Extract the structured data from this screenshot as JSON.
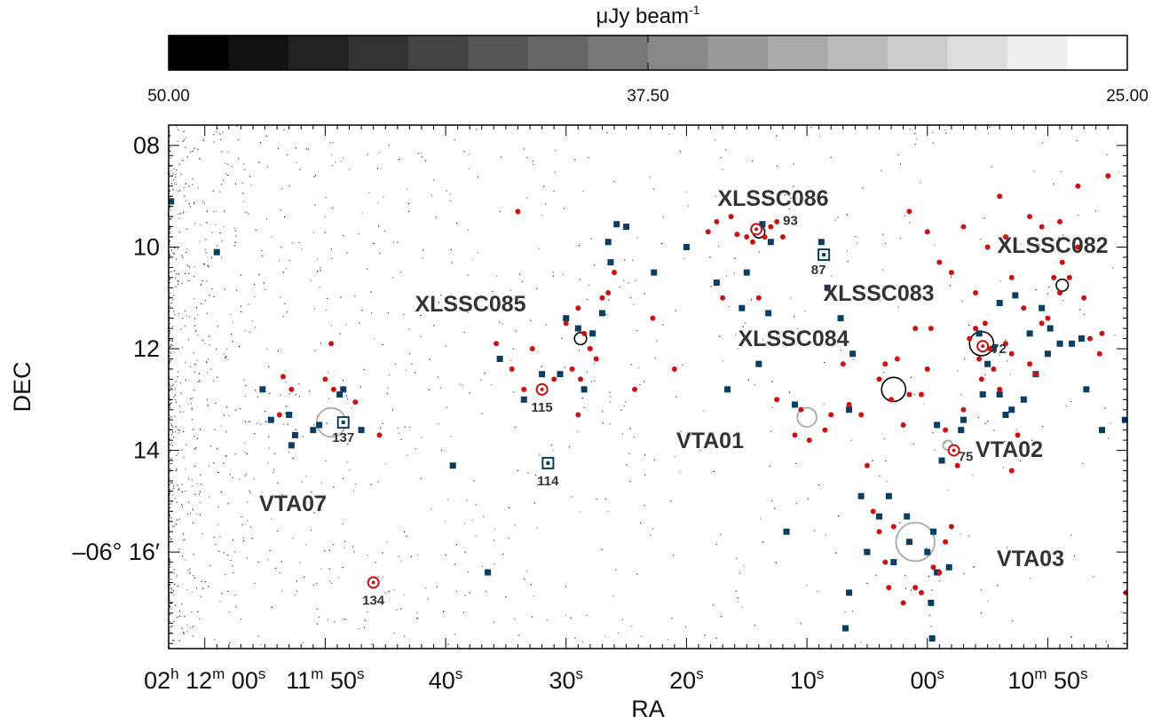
{
  "chart_data": {
    "type": "scatter",
    "colorbar": {
      "unit_label": "μJy beam",
      "unit_exponent": "-1",
      "range": [
        50.0,
        25.0
      ],
      "ticks": [
        "50.00",
        "37.50",
        "25.00"
      ],
      "n_steps": 16
    },
    "axes": {
      "xlabel": "RA",
      "ylabel": "DEC",
      "x_ticks": [
        {
          "sec": 60,
          "parts": [
            "02",
            "h",
            " 12",
            "m",
            " 00",
            "s"
          ]
        },
        {
          "sec": 50,
          "parts": [
            "11",
            "m",
            " 50",
            "s"
          ]
        },
        {
          "sec": 40,
          "parts": [
            "40",
            "s"
          ]
        },
        {
          "sec": 30,
          "parts": [
            "30",
            "s"
          ]
        },
        {
          "sec": 20,
          "parts": [
            "20",
            "s"
          ]
        },
        {
          "sec": 10,
          "parts": [
            "10",
            "s"
          ]
        },
        {
          "sec": 0,
          "parts": [
            "00",
            "s"
          ]
        },
        {
          "sec": -10,
          "parts": [
            "10",
            "m",
            " 50",
            "s"
          ]
        }
      ],
      "y_ticks": [
        {
          "arcmin": 8,
          "label": "08"
        },
        {
          "arcmin": 10,
          "label": "10"
        },
        {
          "arcmin": 12,
          "label": "12"
        },
        {
          "arcmin": 14,
          "label": "14"
        },
        {
          "arcmin": 16,
          "label": "–06° 16′"
        }
      ],
      "x_range_sec_offset_from_02h11m": [
        63.0,
        -16.6
      ],
      "y_range_arcmin_below_06deg": [
        7.6,
        17.9
      ]
    },
    "colors": {
      "red_sources": "#cc1111",
      "blue_sources": "#0a3d62",
      "cluster_circle": "#000000",
      "candidate_circle": "#aaaaaa"
    },
    "clusters": [
      {
        "name": "XLSSC086",
        "ra": 14.0,
        "dec": 9.7,
        "r": 0.5
      },
      {
        "name": "XLSSC085",
        "ra": 28.8,
        "dec": 11.8,
        "r": 0.5
      },
      {
        "name": "XLSSC083",
        "ra": 2.8,
        "dec": 12.8,
        "r": 1.0
      },
      {
        "name": "XLSSC084",
        "ra": -4.5,
        "dec": 11.9,
        "r": 1.0
      },
      {
        "name": "XLSSC082",
        "ra": -11.2,
        "dec": 10.75,
        "r": 0.5
      }
    ],
    "candidates": [
      {
        "name": "VTA07",
        "ra": 49.5,
        "dec": 13.45,
        "r": 1.2
      },
      {
        "name": "VTA01",
        "ra": 10.0,
        "dec": 13.35,
        "r": 0.8
      },
      {
        "name": "VTA02",
        "ra": -1.7,
        "dec": 13.9,
        "r": 0.4
      },
      {
        "name": "VTA03",
        "ra": 1.0,
        "dec": 15.8,
        "r": 1.6
      }
    ],
    "highlighted_sources": [
      {
        "id": "137",
        "type": "square",
        "ra": 48.5,
        "dec": 13.45
      },
      {
        "id": "134",
        "type": "circle",
        "ra": 46.0,
        "dec": 16.6
      },
      {
        "id": "115",
        "type": "circle",
        "ra": 32.0,
        "dec": 12.8
      },
      {
        "id": "114",
        "type": "square",
        "ra": 31.5,
        "dec": 14.25
      },
      {
        "id": "93",
        "type": "circle",
        "ra": 14.2,
        "dec": 9.65
      },
      {
        "id": "87",
        "type": "square",
        "ra": 8.6,
        "dec": 10.15
      },
      {
        "id": "72",
        "type": "circle",
        "ra": -4.6,
        "dec": 11.95
      },
      {
        "id": "75",
        "type": "circle",
        "ra": -2.2,
        "dec": 14.0
      }
    ],
    "red_sources": [
      [
        53.5,
        12.55
      ],
      [
        52.8,
        12.8
      ],
      [
        53.8,
        13.3
      ],
      [
        50.0,
        12.6
      ],
      [
        49.5,
        11.9
      ],
      [
        47.5,
        13.05
      ],
      [
        45.5,
        13.7
      ],
      [
        49.3,
        12.8
      ],
      [
        35.8,
        11.9
      ],
      [
        34.5,
        12.4
      ],
      [
        33.5,
        12.8
      ],
      [
        32.8,
        12.0
      ],
      [
        34.0,
        9.3
      ],
      [
        30.0,
        11.5
      ],
      [
        29.0,
        11.2
      ],
      [
        28.5,
        11.7
      ],
      [
        28.0,
        12.0
      ],
      [
        28.8,
        12.6
      ],
      [
        29.5,
        12.4
      ],
      [
        27.0,
        11.0
      ],
      [
        26.5,
        10.9
      ],
      [
        27.5,
        12.2
      ],
      [
        29.0,
        13.3
      ],
      [
        31.0,
        12.6
      ],
      [
        26.0,
        10.5
      ],
      [
        24.3,
        12.8
      ],
      [
        22.8,
        11.4
      ],
      [
        21.0,
        12.4
      ],
      [
        17.0,
        11.0
      ],
      [
        15.8,
        9.75
      ],
      [
        15.0,
        9.8
      ],
      [
        14.5,
        9.9
      ],
      [
        13.5,
        9.8
      ],
      [
        13.0,
        9.6
      ],
      [
        12.5,
        9.5
      ],
      [
        14.0,
        11.0
      ],
      [
        12.0,
        9.8
      ],
      [
        16.3,
        9.4
      ],
      [
        17.5,
        9.5
      ],
      [
        18.2,
        9.7
      ],
      [
        12.5,
        13.0
      ],
      [
        11.0,
        13.7
      ],
      [
        10.5,
        13.2
      ],
      [
        9.8,
        13.8
      ],
      [
        8.5,
        13.6
      ],
      [
        8.0,
        13.3
      ],
      [
        7.0,
        12.3
      ],
      [
        6.5,
        13.1
      ],
      [
        5.5,
        13.3
      ],
      [
        5.0,
        14.3
      ],
      [
        4.0,
        12.6
      ],
      [
        3.5,
        12.3
      ],
      [
        3.0,
        13.0
      ],
      [
        2.5,
        12.2
      ],
      [
        2.0,
        13.5
      ],
      [
        1.5,
        12.9
      ],
      [
        1.0,
        11.6
      ],
      [
        0.5,
        12.9
      ],
      [
        0.0,
        12.4
      ],
      [
        -0.3,
        11.6
      ],
      [
        4.5,
        15.2
      ],
      [
        4.0,
        15.6
      ],
      [
        3.5,
        16.2
      ],
      [
        3.2,
        16.7
      ],
      [
        2.8,
        15.5
      ],
      [
        2.0,
        17.0
      ],
      [
        1.0,
        16.7
      ],
      [
        0.5,
        16.8
      ],
      [
        -0.5,
        16.3
      ],
      [
        -1.0,
        16.4
      ],
      [
        -1.5,
        15.8
      ],
      [
        -2.0,
        15.5
      ],
      [
        -3.5,
        11.8
      ],
      [
        -4.0,
        11.6
      ],
      [
        -4.3,
        12.2
      ],
      [
        -4.8,
        11.5
      ],
      [
        -5.2,
        12.0
      ],
      [
        -5.5,
        12.4
      ],
      [
        -6.0,
        12.8
      ],
      [
        -6.5,
        11.9
      ],
      [
        -7.0,
        12.1
      ],
      [
        -8.0,
        11.2
      ],
      [
        -8.5,
        12.3
      ],
      [
        -9.0,
        12.5
      ],
      [
        -9.5,
        11.5
      ],
      [
        -10.0,
        11.4
      ],
      [
        -10.5,
        10.6
      ],
      [
        -11.0,
        10.9
      ],
      [
        -11.2,
        10.3
      ],
      [
        -11.8,
        10.6
      ],
      [
        -12.5,
        10.0
      ],
      [
        -13.0,
        11.0
      ],
      [
        -13.5,
        11.8
      ],
      [
        -14.3,
        12.1
      ],
      [
        -14.5,
        11.7
      ],
      [
        -15.0,
        8.6
      ],
      [
        1.5,
        9.3
      ],
      [
        0.0,
        9.7
      ],
      [
        -1.0,
        10.3
      ],
      [
        -2.0,
        10.5
      ],
      [
        -3.0,
        9.6
      ],
      [
        -4.0,
        10.9
      ],
      [
        -5.0,
        10.0
      ],
      [
        -6.0,
        9.0
      ],
      [
        -6.5,
        9.8
      ],
      [
        -7.0,
        10.6
      ],
      [
        -8.5,
        9.4
      ],
      [
        -9.5,
        9.6
      ],
      [
        -11.0,
        9.5
      ],
      [
        -12.5,
        8.8
      ],
      [
        -16.5,
        16.8
      ],
      [
        -2.5,
        14.3
      ],
      [
        -1.5,
        13.6
      ],
      [
        -3.0,
        13.2
      ],
      [
        -4.5,
        12.6
      ],
      [
        -7.0,
        14.4
      ],
      [
        -7.5,
        13.7
      ]
    ],
    "blue_sources": [
      [
        62.8,
        9.1
      ],
      [
        59.0,
        10.1
      ],
      [
        53.0,
        13.3
      ],
      [
        52.5,
        13.7
      ],
      [
        51.0,
        13.6
      ],
      [
        50.5,
        13.5
      ],
      [
        48.8,
        12.9
      ],
      [
        48.5,
        12.8
      ],
      [
        52.8,
        13.9
      ],
      [
        54.5,
        13.4
      ],
      [
        47.0,
        13.6
      ],
      [
        55.2,
        12.8
      ],
      [
        39.4,
        14.3
      ],
      [
        36.5,
        16.4
      ],
      [
        35.5,
        12.2
      ],
      [
        33.5,
        13.0
      ],
      [
        32.0,
        12.5
      ],
      [
        30.0,
        11.4
      ],
      [
        30.5,
        12.5
      ],
      [
        29.0,
        11.6
      ],
      [
        28.5,
        12.8
      ],
      [
        27.8,
        11.7
      ],
      [
        27.0,
        11.3
      ],
      [
        26.3,
        10.3
      ],
      [
        26.5,
        9.9
      ],
      [
        25.8,
        9.55
      ],
      [
        25.0,
        9.6
      ],
      [
        22.7,
        10.5
      ],
      [
        20.0,
        10.0
      ],
      [
        17.5,
        10.7
      ],
      [
        16.6,
        12.8
      ],
      [
        15.4,
        11.2
      ],
      [
        15.0,
        10.5
      ],
      [
        13.7,
        9.55
      ],
      [
        13.0,
        9.9
      ],
      [
        13.2,
        11.3
      ],
      [
        14.0,
        12.3
      ],
      [
        11.7,
        15.6
      ],
      [
        11.0,
        13.1
      ],
      [
        8.8,
        9.9
      ],
      [
        8.3,
        10.8
      ],
      [
        7.2,
        11.4
      ],
      [
        6.2,
        12.1
      ],
      [
        6.5,
        13.2
      ],
      [
        5.5,
        14.9
      ],
      [
        5.0,
        16.0
      ],
      [
        4.0,
        15.3
      ],
      [
        3.2,
        14.9
      ],
      [
        2.8,
        16.2
      ],
      [
        1.7,
        15.3
      ],
      [
        1.5,
        15.8
      ],
      [
        0.0,
        16.0
      ],
      [
        -0.5,
        15.6
      ],
      [
        -0.8,
        16.4
      ],
      [
        -1.8,
        16.3
      ],
      [
        -0.3,
        17.0
      ],
      [
        -0.4,
        17.7
      ],
      [
        -0.8,
        13.5
      ],
      [
        -1.2,
        14.2
      ],
      [
        6.5,
        16.8
      ],
      [
        6.8,
        17.5
      ],
      [
        -2.8,
        13.6
      ],
      [
        -4.3,
        11.7
      ],
      [
        -5.0,
        12.3
      ],
      [
        -5.5,
        12.0
      ],
      [
        -6.0,
        12.9
      ],
      [
        -6.5,
        13.3
      ],
      [
        -7.0,
        13.2
      ],
      [
        -8.0,
        13.0
      ],
      [
        -8.5,
        11.7
      ],
      [
        -9.0,
        12.5
      ],
      [
        -10.0,
        12.1
      ],
      [
        -11.0,
        11.9
      ],
      [
        -12.0,
        11.9
      ],
      [
        -12.8,
        11.8
      ],
      [
        -13.2,
        12.8
      ],
      [
        -14.5,
        13.6
      ],
      [
        -16.4,
        13.4
      ],
      [
        -10.2,
        11.6
      ],
      [
        -9.5,
        11.2
      ],
      [
        -7.3,
        10.95
      ],
      [
        -6.0,
        11.1
      ],
      [
        -4.6,
        12.9
      ],
      [
        -3.0,
        13.4
      ]
    ]
  }
}
